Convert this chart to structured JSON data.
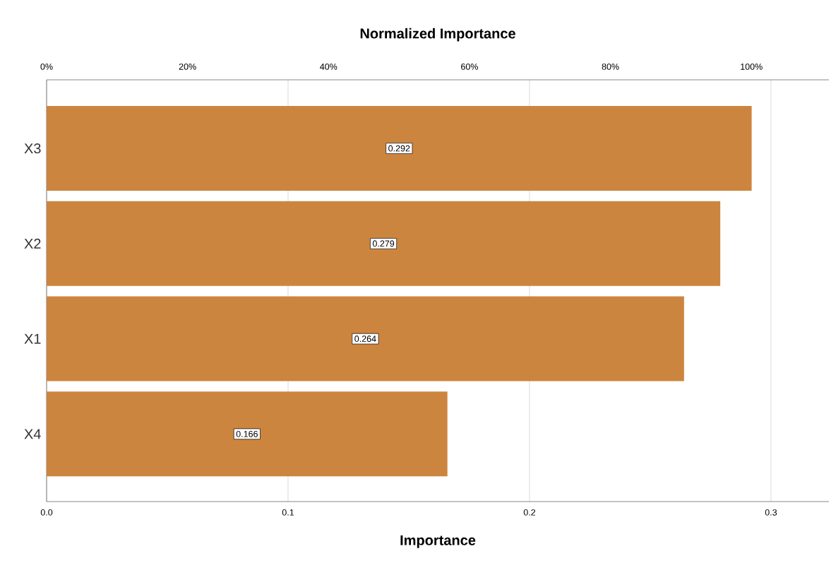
{
  "chart_data": {
    "type": "bar",
    "orientation": "horizontal",
    "xlabel": "Importance",
    "x2label": "Normalized Importance",
    "categories": [
      "X3",
      "X2",
      "X1",
      "X4"
    ],
    "values": [
      0.292,
      0.279,
      0.264,
      0.166
    ],
    "color": "#cc853f",
    "data_labels": true,
    "xlim": [
      0,
      0.324
    ],
    "xticks": [
      {
        "value": 0,
        "label": "0.0"
      },
      0.1,
      0.2,
      0.3
    ],
    "x2lim": [
      0,
      111
    ],
    "x2ticks": [
      {
        "value": 0,
        "label": "0%"
      },
      {
        "value": 20,
        "label": "20%"
      },
      {
        "value": 40,
        "label": "40%"
      },
      {
        "value": 60,
        "label": "60%"
      },
      {
        "value": 80,
        "label": "80%"
      },
      {
        "value": 100,
        "label": "100%"
      }
    ],
    "grid": "x"
  }
}
